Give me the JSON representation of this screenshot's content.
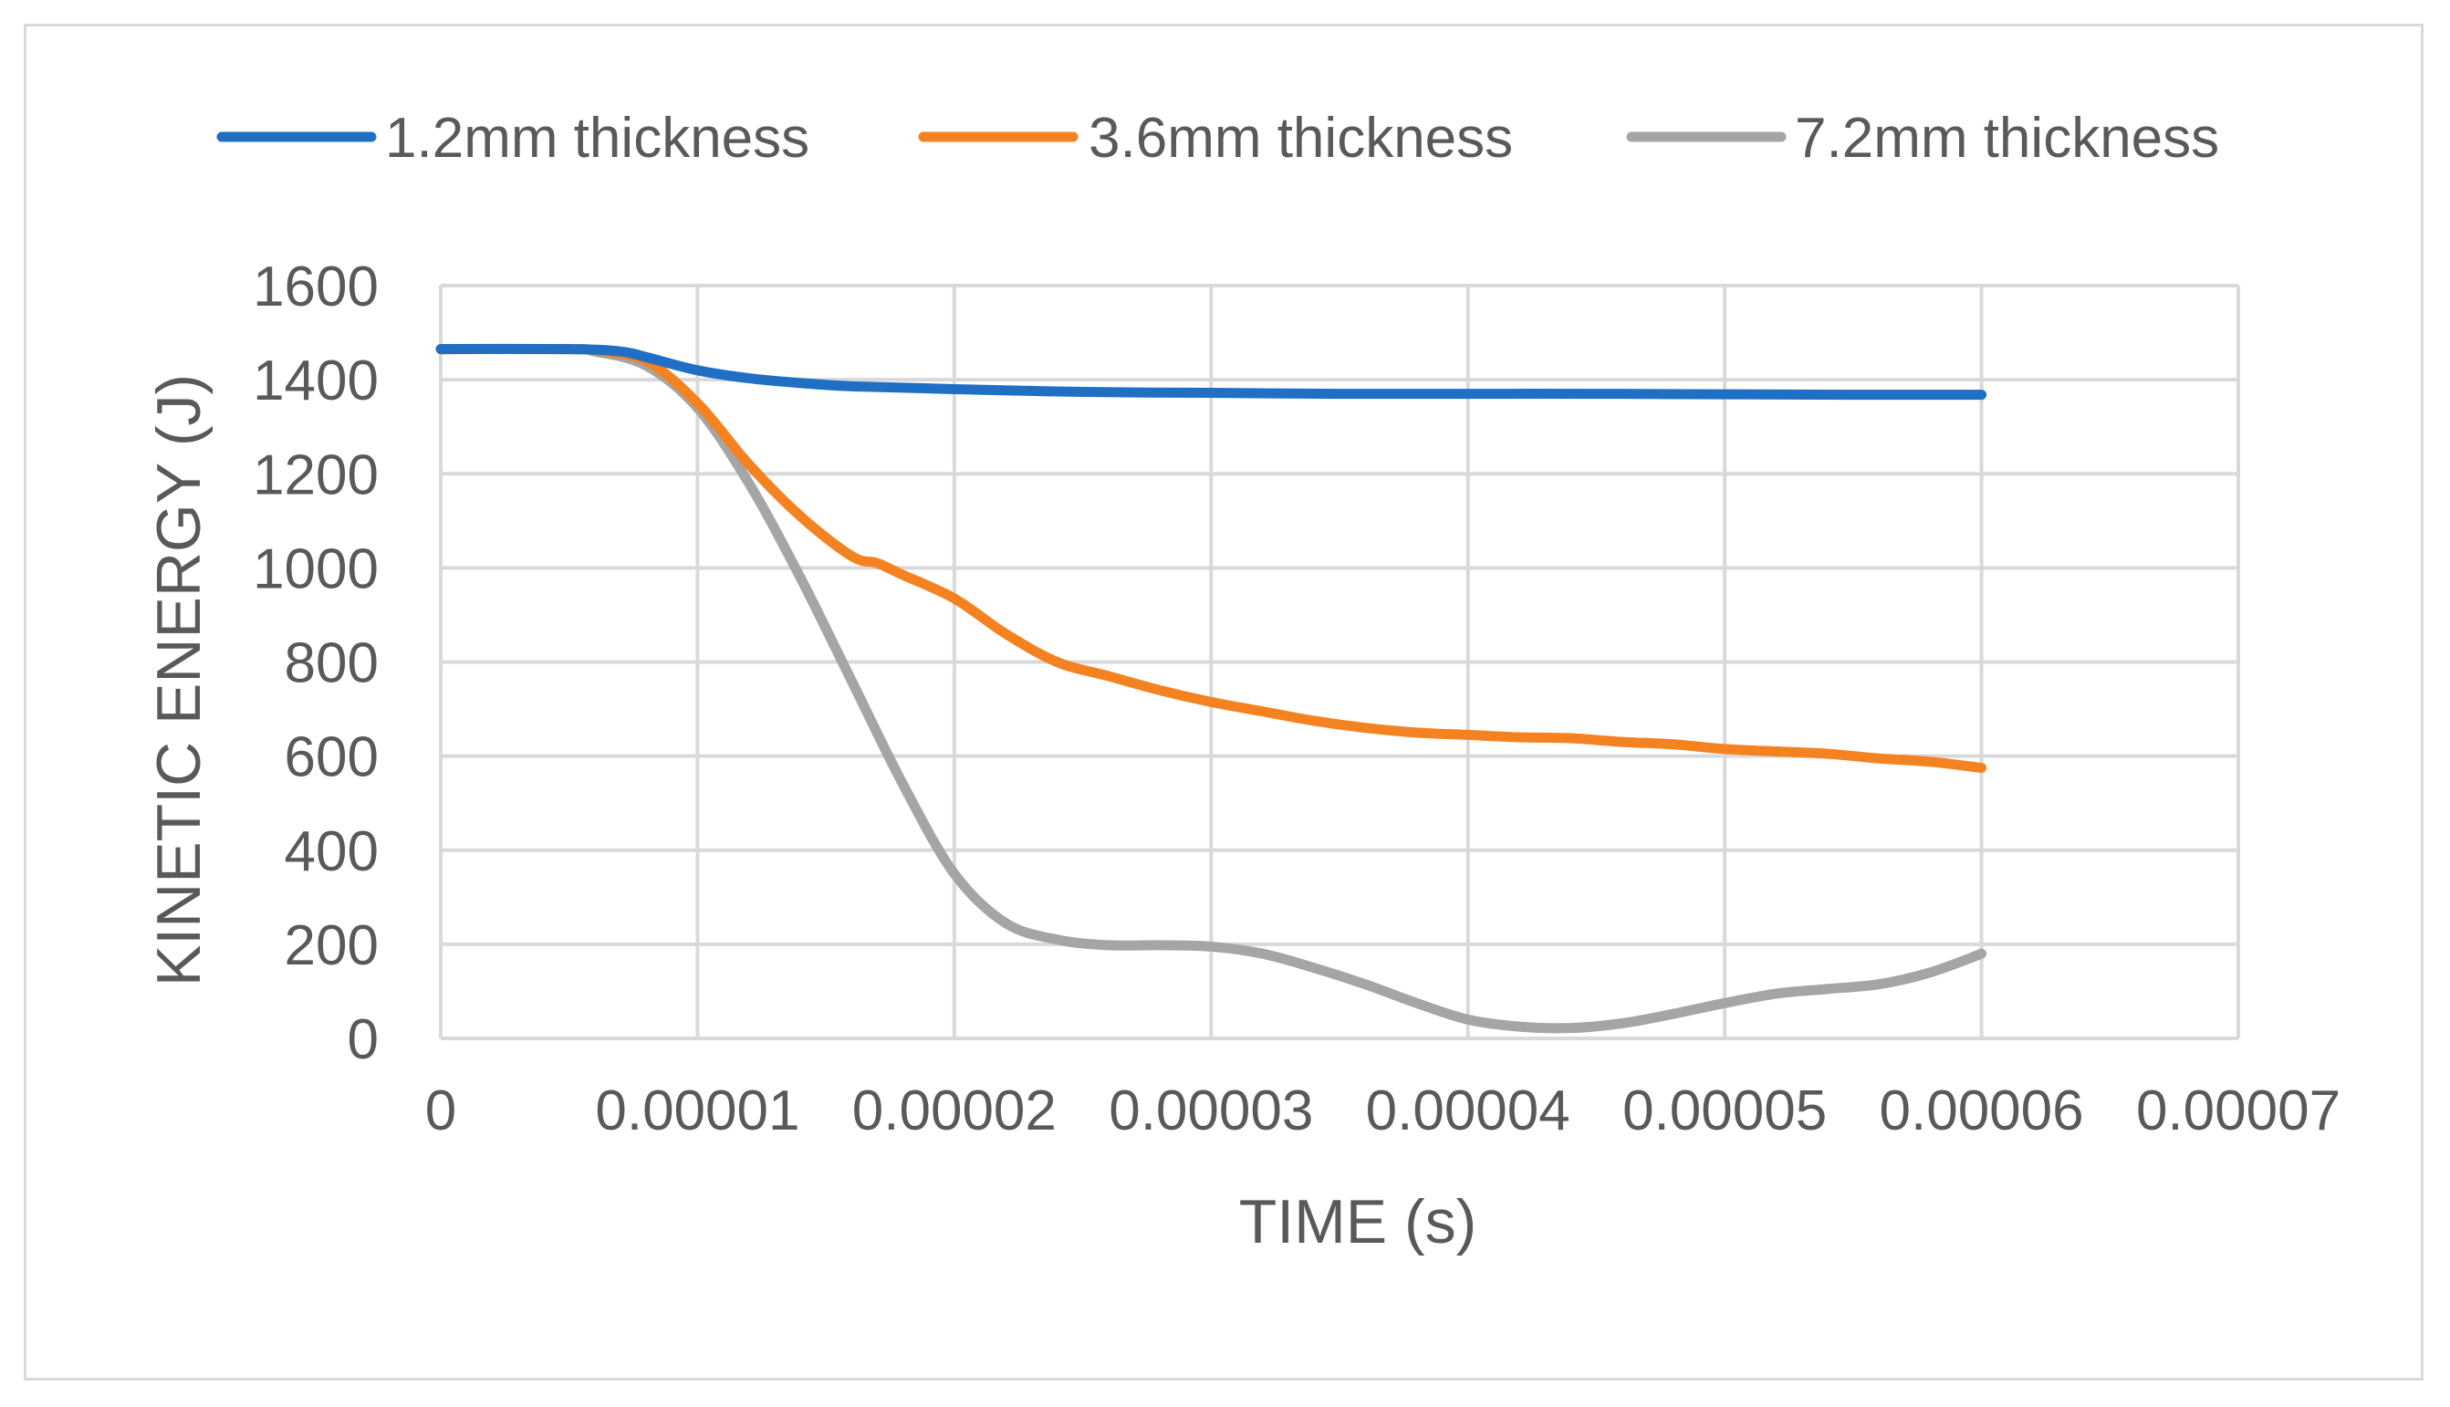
{
  "chart_data": {
    "type": "line",
    "title": "",
    "xlabel": "TIME (s)",
    "ylabel": "KINETIC ENERGY (J)",
    "xlim": [
      0,
      7e-05
    ],
    "ylim": [
      0,
      1600
    ],
    "grid": true,
    "legend_position": "top",
    "x_ticks": [
      {
        "value": 0,
        "label": "0"
      },
      {
        "value": 1e-05,
        "label": "0.00001"
      },
      {
        "value": 2e-05,
        "label": "0.00002"
      },
      {
        "value": 3e-05,
        "label": "0.00003"
      },
      {
        "value": 4e-05,
        "label": "0.00004"
      },
      {
        "value": 5e-05,
        "label": "0.00005"
      },
      {
        "value": 6e-05,
        "label": "0.00006"
      },
      {
        "value": 7e-05,
        "label": "0.00007"
      }
    ],
    "y_ticks": [
      {
        "value": 0,
        "label": "0"
      },
      {
        "value": 200,
        "label": "200"
      },
      {
        "value": 400,
        "label": "400"
      },
      {
        "value": 600,
        "label": "600"
      },
      {
        "value": 800,
        "label": "800"
      },
      {
        "value": 1000,
        "label": "1000"
      },
      {
        "value": 1200,
        "label": "1200"
      },
      {
        "value": 1400,
        "label": "1400"
      },
      {
        "value": 1600,
        "label": "1600"
      }
    ],
    "series": [
      {
        "name": "1.2mm thickness",
        "color": "#1f6fc5",
        "x": [
          0,
          5e-06,
          7e-06,
          8e-06,
          1e-05,
          1.2e-05,
          1.4e-05,
          1.6e-05,
          2e-05,
          2.5e-05,
          3e-05,
          3.5e-05,
          4e-05,
          4.5e-05,
          5e-05,
          5.5e-05,
          6e-05
        ],
        "y": [
          1465,
          1465,
          1460,
          1448,
          1420,
          1403,
          1393,
          1386,
          1380,
          1374,
          1372,
          1370,
          1370,
          1370,
          1369,
          1368,
          1368
        ]
      },
      {
        "name": "3.6mm thickness",
        "color": "#f58220",
        "x": [
          0,
          5e-06,
          6e-06,
          8e-06,
          1e-05,
          1.2e-05,
          1.4e-05,
          1.6e-05,
          1.7e-05,
          1.8e-05,
          2e-05,
          2.2e-05,
          2.4e-05,
          2.6e-05,
          2.8e-05,
          3e-05,
          3.2e-05,
          3.4e-05,
          3.6e-05,
          3.8e-05,
          4e-05,
          4.2e-05,
          4.4e-05,
          4.6e-05,
          4.8e-05,
          5e-05,
          5.2e-05,
          5.4e-05,
          5.6e-05,
          5.8e-05,
          6e-05
        ],
        "y": [
          1465,
          1465,
          1462,
          1440,
          1350,
          1220,
          1110,
          1025,
          1010,
          985,
          935,
          860,
          800,
          770,
          740,
          715,
          695,
          675,
          660,
          650,
          645,
          640,
          638,
          630,
          625,
          615,
          610,
          605,
          595,
          588,
          575
        ]
      },
      {
        "name": "7.2mm thickness",
        "color": "#a5a5a5",
        "x": [
          0,
          5e-06,
          6e-06,
          8e-06,
          1e-05,
          1.2e-05,
          1.4e-05,
          1.6e-05,
          1.8e-05,
          2e-05,
          2.2e-05,
          2.4e-05,
          2.6e-05,
          2.8e-05,
          3e-05,
          3.2e-05,
          3.4e-05,
          3.6e-05,
          3.8e-05,
          4e-05,
          4.2e-05,
          4.4e-05,
          4.6e-05,
          4.8e-05,
          5e-05,
          5.2e-05,
          5.4e-05,
          5.6e-05,
          5.8e-05,
          6e-05
        ],
        "y": [
          1465,
          1465,
          1460,
          1430,
          1340,
          1180,
          980,
          760,
          540,
          350,
          245,
          210,
          198,
          198,
          195,
          180,
          150,
          115,
          75,
          40,
          25,
          22,
          32,
          52,
          75,
          95,
          105,
          115,
          140,
          180
        ]
      }
    ]
  }
}
